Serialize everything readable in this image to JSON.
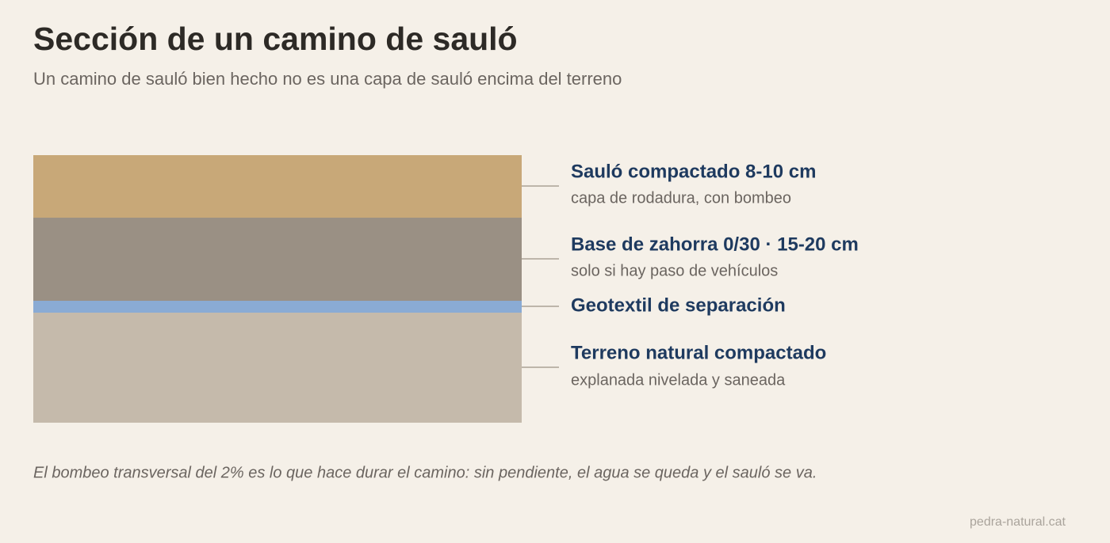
{
  "header": {
    "title": "Sección de un camino de sauló",
    "subtitle": "Un camino de sauló bien hecho no es una capa de sauló encima del terreno"
  },
  "layers": [
    {
      "label": "Sauló compactado 8-10 cm",
      "sublabel": "capa de rodadura, con bombeo"
    },
    {
      "label": "Base de zahorra 0/30 · 15-20 cm",
      "sublabel": "solo si hay paso de vehículos"
    },
    {
      "label": "Geotextil de separación"
    },
    {
      "label": "Terreno natural compactado",
      "sublabel": "explanada nivelada y saneada"
    }
  ],
  "note": "El bombeo transversal del 2% es lo que hace durar el camino: sin pendiente, el agua se queda y el sauló se va.",
  "credit": "pedra-natural.cat"
}
